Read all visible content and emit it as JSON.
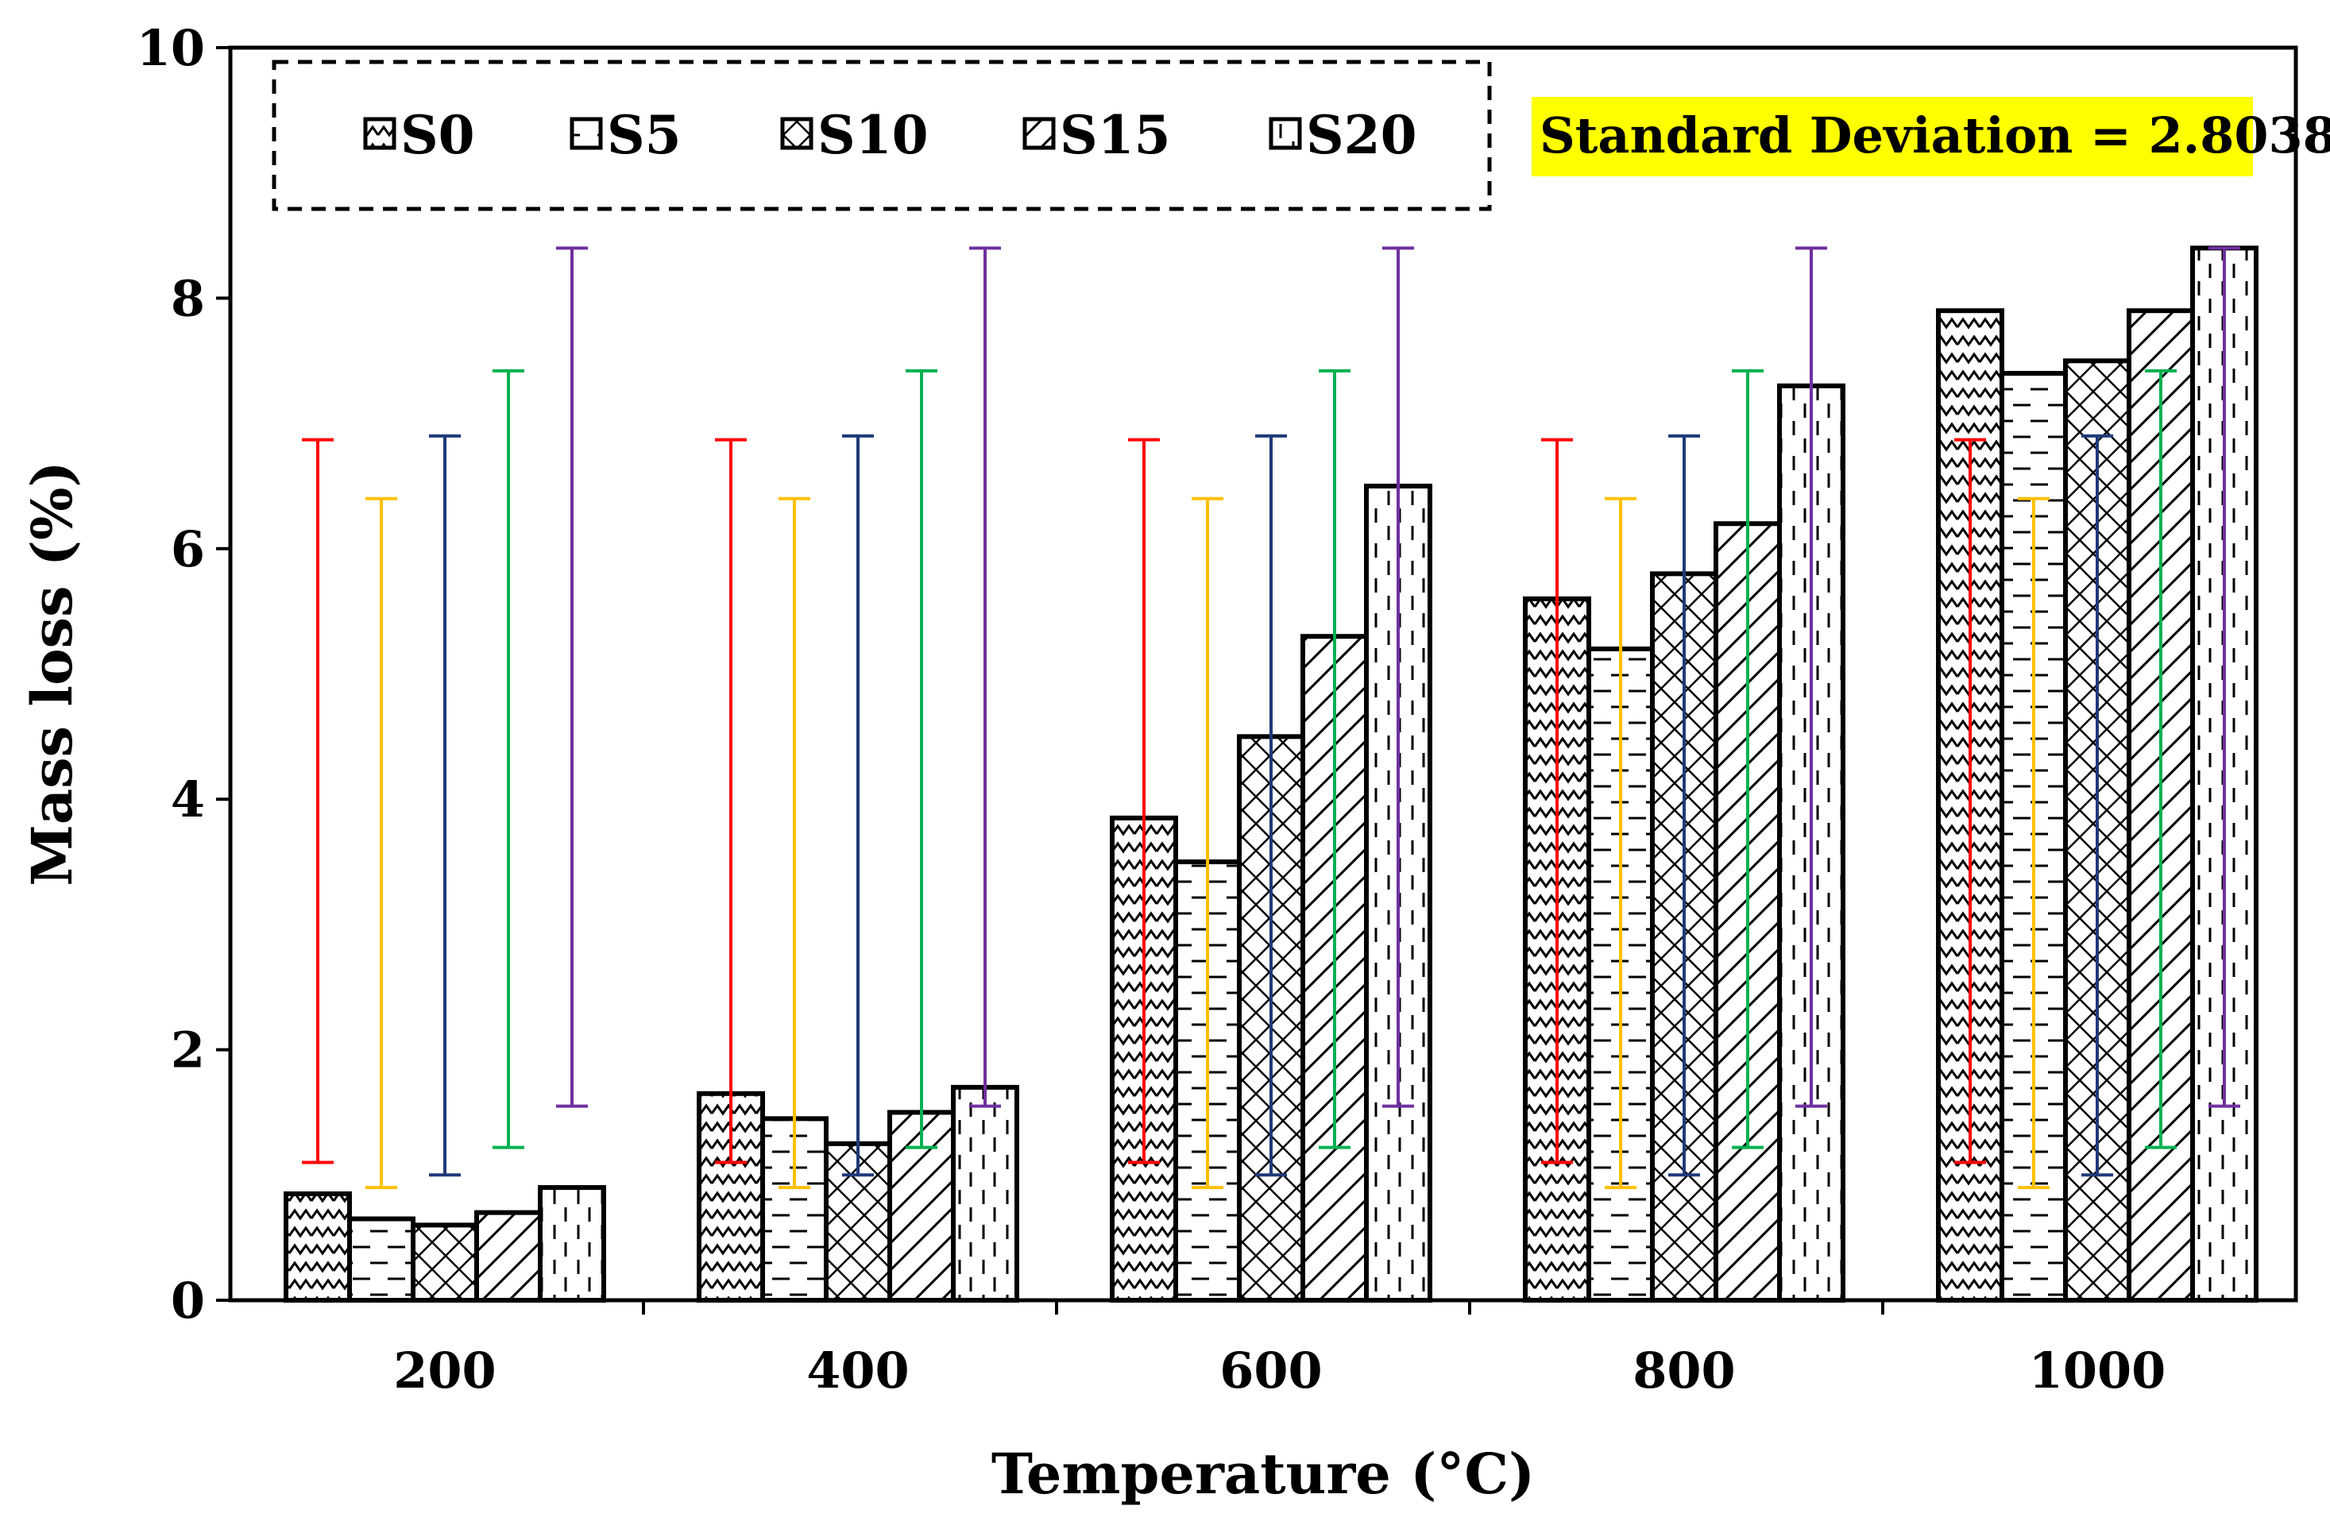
{
  "chart_data": {
    "type": "bar",
    "title": "",
    "xlabel": "Temperature (°C)",
    "ylabel": "Mass loss (%)",
    "categories": [
      "200",
      "400",
      "600",
      "800",
      "1000"
    ],
    "ylim": [
      0,
      10
    ],
    "yticks": [
      "0",
      "2",
      "4",
      "6",
      "8",
      "10"
    ],
    "grid": false,
    "legend_position": "top-left",
    "series": [
      {
        "name": "S0",
        "values": [
          0.85,
          1.65,
          3.85,
          5.6,
          7.9
        ],
        "error_low": 1.1,
        "error_high": 6.87,
        "error_color": "#ff0000",
        "pattern": "zigzag"
      },
      {
        "name": "S5",
        "values": [
          0.65,
          1.45,
          3.5,
          5.2,
          7.4
        ],
        "error_low": 0.9,
        "error_high": 6.4,
        "error_color": "#ffc000",
        "pattern": "hdash"
      },
      {
        "name": "S10",
        "values": [
          0.6,
          1.25,
          4.5,
          5.8,
          7.5
        ],
        "error_low": 1.0,
        "error_high": 6.9,
        "error_color": "#1f3a7a",
        "pattern": "cross"
      },
      {
        "name": "S15",
        "values": [
          0.7,
          1.5,
          5.3,
          6.2,
          7.9
        ],
        "error_low": 1.22,
        "error_high": 7.42,
        "error_color": "#00b050",
        "pattern": "diag"
      },
      {
        "name": "S20",
        "values": [
          0.9,
          1.7,
          6.5,
          7.3,
          8.4
        ],
        "error_low": 1.55,
        "error_high": 8.4,
        "error_color": "#7030a0",
        "pattern": "vdash"
      }
    ],
    "annotation": {
      "text": "Standard Deviation = 2.8038",
      "color": "#ff0000",
      "background": "#ffff00"
    }
  }
}
